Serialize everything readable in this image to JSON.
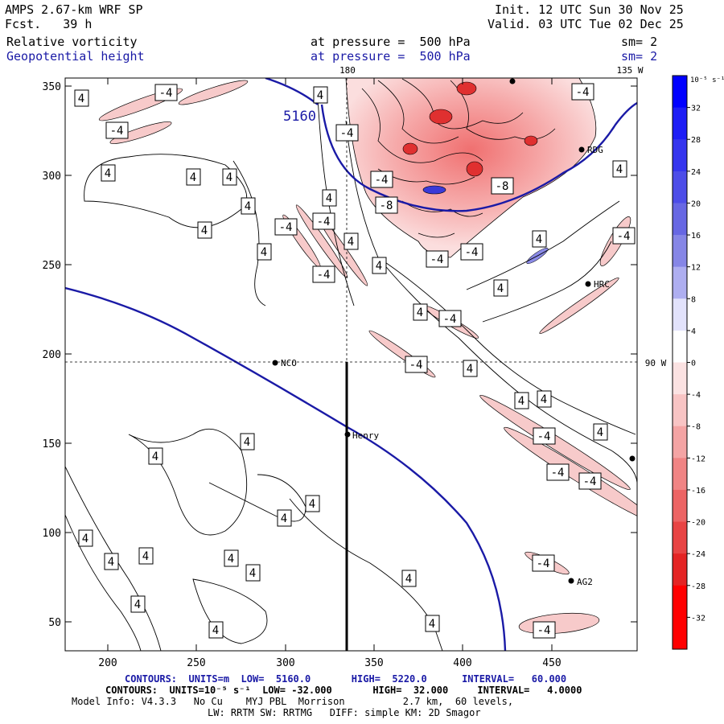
{
  "header": {
    "model": "AMPS 2.67-km WRF SP",
    "forecast": "Fcst.   39 h",
    "init": "Init. 12 UTC Sun 30 Nov 25",
    "valid": "Valid. 03 UTC Tue 02 Dec 25",
    "field1": "Relative vorticity",
    "field1_level": "at pressure =  500 hPa",
    "field1_sm": "sm= 2",
    "field2": "Geopotential height",
    "field2_level": "at pressure =  500 hPa",
    "field2_sm": "sm= 2"
  },
  "map": {
    "x_ticks": [
      "200",
      "250",
      "300",
      "350",
      "400",
      "450"
    ],
    "y_ticks": [
      "350",
      "300",
      "250",
      "200",
      "150",
      "100",
      "50"
    ],
    "lon_top_180": "180",
    "lon_top_135": "135 W",
    "lon_right_90": "90 W",
    "height_label": "5160",
    "stations": [
      {
        "name": "RDG"
      },
      {
        "name": "HRC"
      },
      {
        "name": "NCO"
      },
      {
        "name": "Henry"
      },
      {
        "name": "AG2"
      }
    ],
    "vort_labels": [
      "4",
      "-4",
      "-8"
    ]
  },
  "colorbar": {
    "unit": "10⁻⁵ s⁻¹",
    "ticks": [
      "32",
      "28",
      "24",
      "20",
      "16",
      "12",
      "8",
      "4",
      "0",
      "-4",
      "-8",
      "-12",
      "-16",
      "-20",
      "-24",
      "-28",
      "-32"
    ],
    "colors": [
      "#0000ff",
      "#1d1df5",
      "#3535ee",
      "#4d4de8",
      "#6767e3",
      "#8686e6",
      "#aeaef0",
      "#e2e2fb",
      "#ffffff",
      "#fbe2e2",
      "#f8c4c4",
      "#f4a4a4",
      "#f08484",
      "#ec6464",
      "#e84444",
      "#e42424",
      "#ff0000",
      "#ff0000"
    ]
  },
  "footer": {
    "line1_label": "CONTOURS:",
    "line1_units": "UNITS=m",
    "line1_low": "LOW=  5160.0",
    "line1_high": "HIGH=  5220.0",
    "line1_interval": "INTERVAL=   60.000",
    "line2": "CONTOURS:  UNITS=10⁻⁵ s⁻¹  LOW= -32.000       HIGH=  32.000     INTERVAL=   4.0000",
    "line3": "Model Info: V4.3.3   No Cu    MYJ PBL  Morrison          2.7 km,  60 levels,",
    "line4": "LW: RRTM SW: RRTMG   DIFF: simple KM: 2D Smagor"
  }
}
